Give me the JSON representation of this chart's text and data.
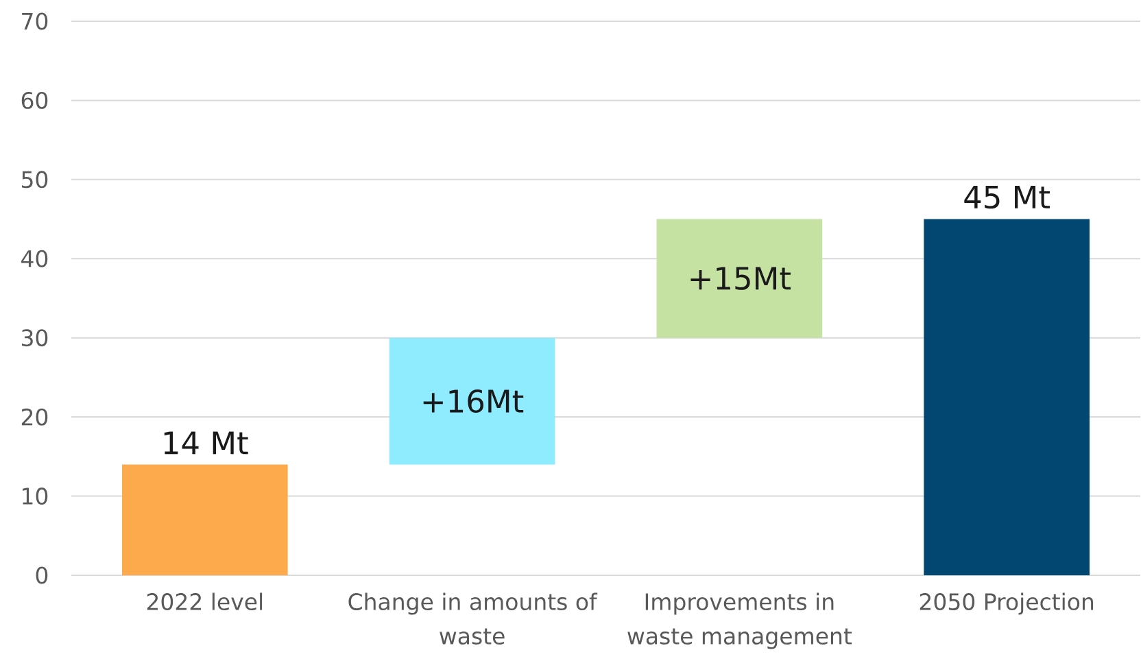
{
  "chart_data": {
    "type": "bar",
    "categories": [
      "2022 level",
      "Change in amounts of waste",
      "Improvements in waste management",
      "2050 Projection"
    ],
    "values": [
      14,
      16,
      15,
      45
    ],
    "base": [
      0,
      14,
      30,
      0
    ],
    "colors": [
      "#fcaa4b",
      "#8febfe",
      "#c5e2a2",
      "#014772"
    ],
    "value_labels": [
      "14 Mt",
      "+16Mt",
      "+15Mt",
      "45 Mt"
    ],
    "ylim": [
      0,
      70
    ],
    "yticks": [
      0,
      10,
      20,
      30,
      40,
      50,
      60,
      70
    ],
    "grid": "y"
  }
}
